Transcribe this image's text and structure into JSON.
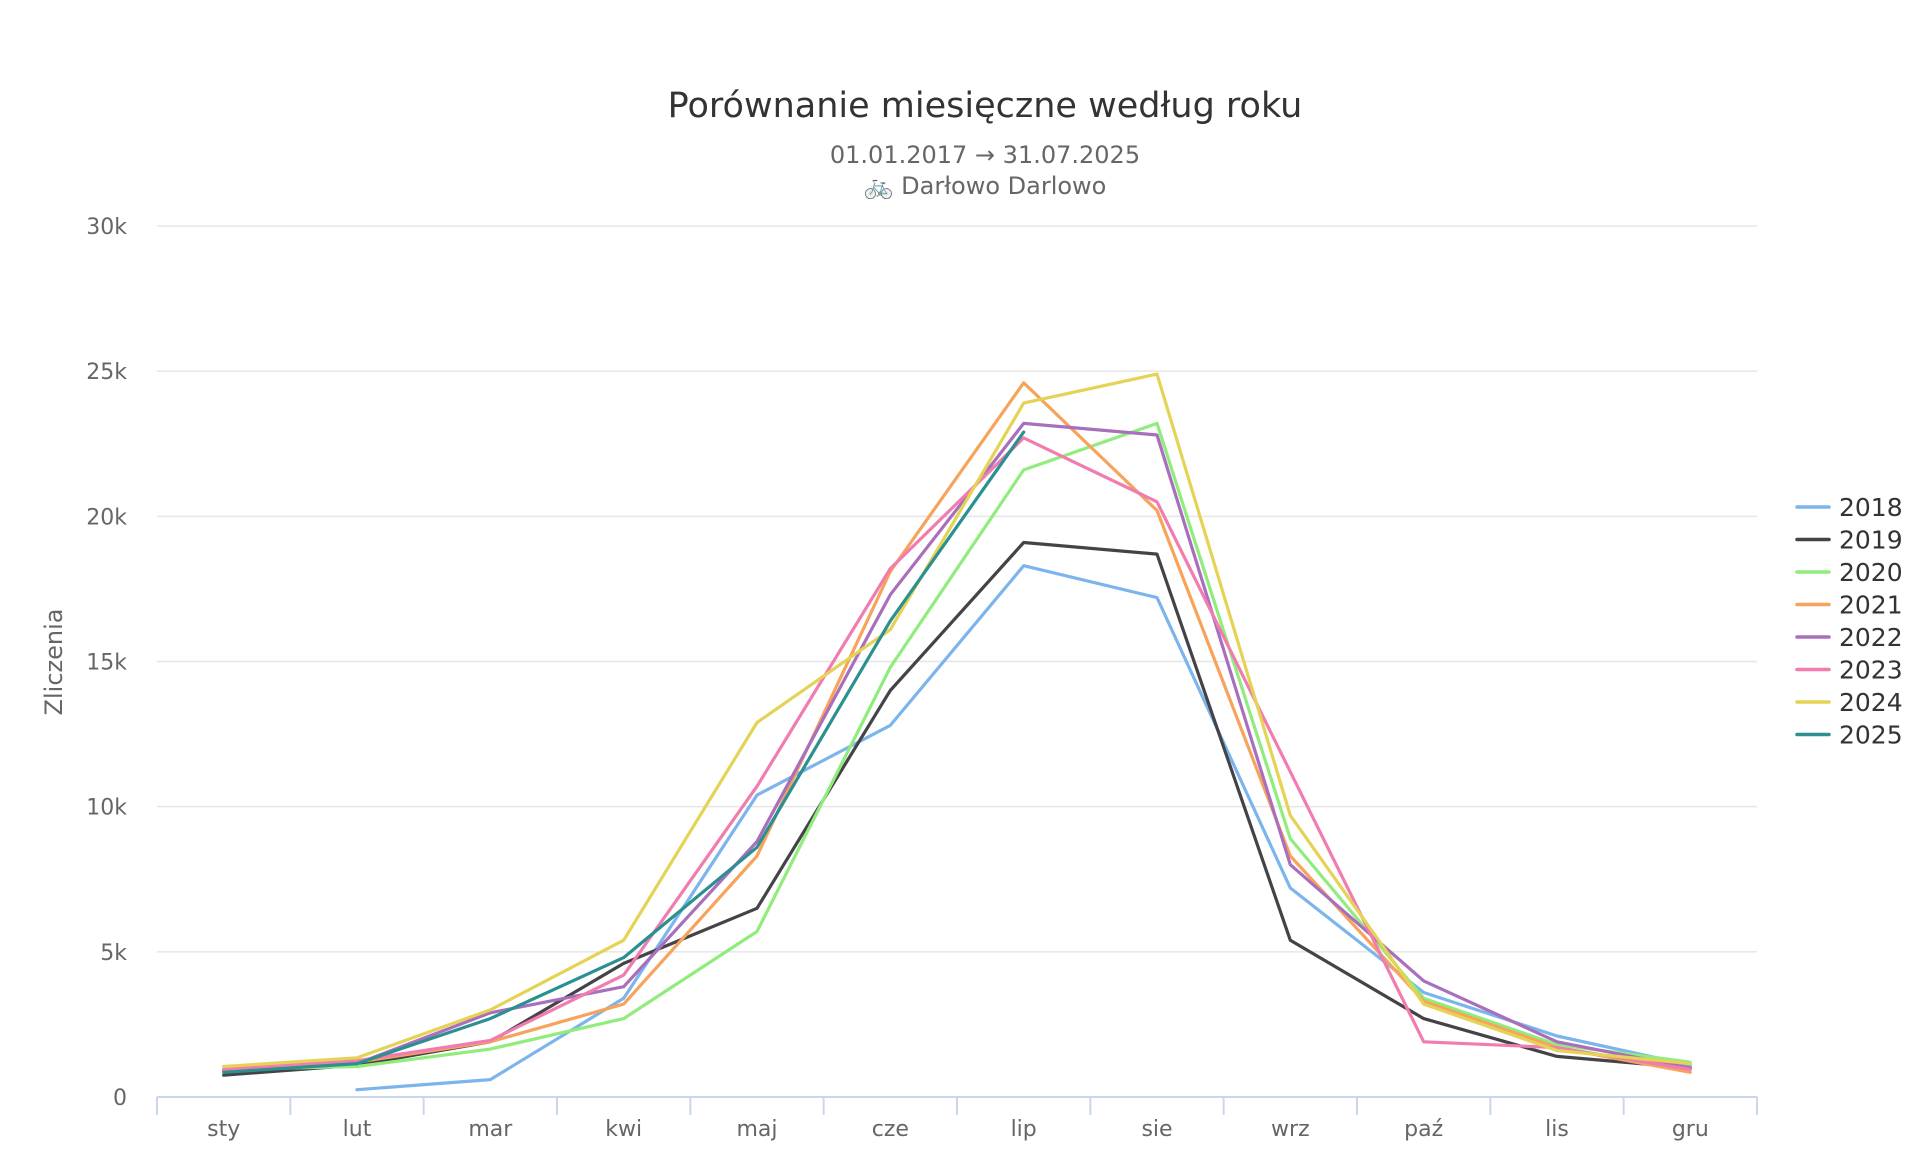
{
  "chart_data": {
    "type": "line",
    "title": "Porównanie miesięczne według roku",
    "subtitle_dates": "01.01.2017 → 31.07.2025",
    "subtitle_location": "🚲 Darłowo Darlowo",
    "ylabel": "Zliczenia",
    "xlabel": "",
    "ylim": [
      0,
      30000
    ],
    "y_ticks": [
      {
        "value": 0,
        "label": "0"
      },
      {
        "value": 5000,
        "label": "5k"
      },
      {
        "value": 10000,
        "label": "10k"
      },
      {
        "value": 15000,
        "label": "15k"
      },
      {
        "value": 20000,
        "label": "20k"
      },
      {
        "value": 25000,
        "label": "25k"
      },
      {
        "value": 30000,
        "label": "30k"
      }
    ],
    "grid": true,
    "legend_position": "right",
    "categories": [
      "sty",
      "lut",
      "mar",
      "kwi",
      "maj",
      "cze",
      "lip",
      "sie",
      "wrz",
      "paź",
      "lis",
      "gru"
    ],
    "series": [
      {
        "name": "2018",
        "color": "#7cb5ec",
        "values": [
          null,
          250,
          600,
          3400,
          10400,
          12800,
          18300,
          17200,
          7200,
          3600,
          2100,
          1100
        ]
      },
      {
        "name": "2019",
        "color": "#434348",
        "values": [
          750,
          1100,
          1900,
          4600,
          6500,
          14000,
          19100,
          18700,
          5400,
          2700,
          1400,
          1000
        ]
      },
      {
        "name": "2020",
        "color": "#90ed7d",
        "values": [
          950,
          1050,
          1650,
          2700,
          5700,
          14800,
          21600,
          23200,
          8900,
          3400,
          1800,
          1200
        ]
      },
      {
        "name": "2021",
        "color": "#f7a35c",
        "values": [
          900,
          1200,
          1900,
          3200,
          8300,
          18100,
          24600,
          20200,
          8300,
          3300,
          1700,
          850
        ]
      },
      {
        "name": "2022",
        "color": "#a96fbc",
        "values": [
          900,
          1150,
          2900,
          3800,
          8800,
          17300,
          23200,
          22800,
          8000,
          4000,
          1900,
          1000
        ]
      },
      {
        "name": "2023",
        "color": "#f17cb0",
        "values": [
          950,
          1250,
          1950,
          4200,
          10700,
          18200,
          22700,
          20500,
          11200,
          1900,
          1700,
          950
        ]
      },
      {
        "name": "2024",
        "color": "#e4d354",
        "values": [
          1050,
          1350,
          3000,
          5400,
          12900,
          16100,
          23900,
          24900,
          9700,
          3200,
          1600,
          1150
        ]
      },
      {
        "name": "2025",
        "color": "#2b908f",
        "values": [
          850,
          1150,
          2700,
          4800,
          8600,
          16400,
          22900,
          null,
          null,
          null,
          null,
          null
        ]
      }
    ]
  }
}
